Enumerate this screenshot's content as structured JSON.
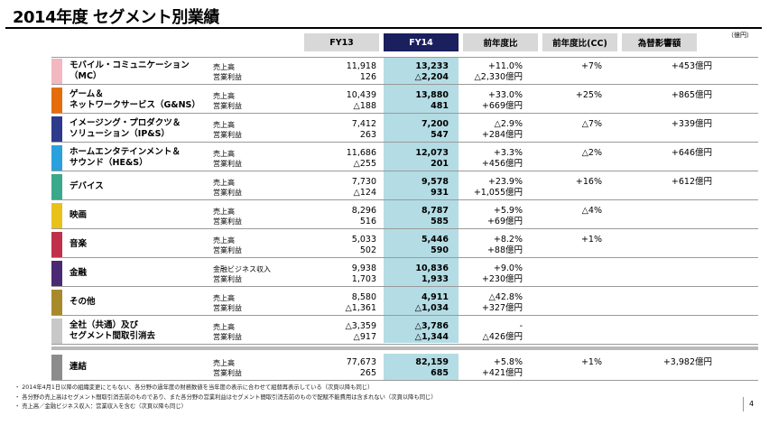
{
  "title": "2014年度 セグメント別業績",
  "unit": "（億円）",
  "headers": {
    "fy13": "FY13",
    "fy14": "FY14",
    "yoy": "前年度比",
    "yoy_cc": "前年度比(CC)",
    "fx": "為替影響額"
  },
  "colors": {
    "header_gray": "#d8d8d8",
    "header_navy": "#1a1f5e",
    "fy14_highlight": "#b4dce4"
  },
  "rows": [
    {
      "name1": "モバイル・コミュニケーション",
      "name2": "（MC）",
      "color": "#f2b8c0",
      "label1": "売上高",
      "label2": "営業利益",
      "fy13_1": "11,918",
      "fy13_2": "126",
      "fy14_1": "13,233",
      "fy14_2": "△2,204",
      "yoy_1": "+11.0%",
      "yoy_2": "△2,330億円",
      "cc": "+7%",
      "fx": "+453億円"
    },
    {
      "name1": "ゲーム＆",
      "name2": "ネットワークサービス（G&NS）",
      "color": "#e46c0a",
      "label1": "売上高",
      "label2": "営業利益",
      "fy13_1": "10,439",
      "fy13_2": "△188",
      "fy14_1": "13,880",
      "fy14_2": "481",
      "yoy_1": "+33.0%",
      "yoy_2": "+669億円",
      "cc": "+25%",
      "fx": "+865億円"
    },
    {
      "name1": "イメージング・プロダクツ＆",
      "name2": "ソリューション（IP&S）",
      "color": "#2e3a8c",
      "label1": "売上高",
      "label2": "営業利益",
      "fy13_1": "7,412",
      "fy13_2": "263",
      "fy14_1": "7,200",
      "fy14_2": "547",
      "yoy_1": "△2.9%",
      "yoy_2": "+284億円",
      "cc": "△7%",
      "fx": "+339億円"
    },
    {
      "name1": "ホームエンタテインメント＆",
      "name2": "サウンド（HE&S）",
      "color": "#2aa0dc",
      "label1": "売上高",
      "label2": "営業利益",
      "fy13_1": "11,686",
      "fy13_2": "△255",
      "fy14_1": "12,073",
      "fy14_2": "201",
      "yoy_1": "+3.3%",
      "yoy_2": "+456億円",
      "cc": "△2%",
      "fx": "+646億円"
    },
    {
      "name1": "デバイス",
      "name2": "",
      "color": "#3aa88a",
      "label1": "売上高",
      "label2": "営業利益",
      "fy13_1": "7,730",
      "fy13_2": "△124",
      "fy14_1": "9,578",
      "fy14_2": "931",
      "yoy_1": "+23.9%",
      "yoy_2": "+1,055億円",
      "cc": "+16%",
      "fx": "+612億円"
    },
    {
      "name1": "映画",
      "name2": "",
      "color": "#e8c11a",
      "label1": "売上高",
      "label2": "営業利益",
      "fy13_1": "8,296",
      "fy13_2": "516",
      "fy14_1": "8,787",
      "fy14_2": "585",
      "yoy_1": "+5.9%",
      "yoy_2": "+69億円",
      "cc": "△4%",
      "fx": ""
    },
    {
      "name1": "音楽",
      "name2": "",
      "color": "#c0304a",
      "label1": "売上高",
      "label2": "営業利益",
      "fy13_1": "5,033",
      "fy13_2": "502",
      "fy14_1": "5,446",
      "fy14_2": "590",
      "yoy_1": "+8.2%",
      "yoy_2": "+88億円",
      "cc": "+1%",
      "fx": ""
    },
    {
      "name1": "金融",
      "name2": "",
      "color": "#4a2a72",
      "label1": "金融ビジネス収入",
      "label2": "営業利益",
      "fy13_1": "9,938",
      "fy13_2": "1,703",
      "fy14_1": "10,836",
      "fy14_2": "1,933",
      "yoy_1": "+9.0%",
      "yoy_2": "+230億円",
      "cc": "",
      "fx": ""
    },
    {
      "name1": "その他",
      "name2": "",
      "color": "#a88a2a",
      "label1": "売上高",
      "label2": "営業利益",
      "fy13_1": "8,580",
      "fy13_2": "△1,361",
      "fy14_1": "4,911",
      "fy14_2": "△1,034",
      "yoy_1": "△42.8%",
      "yoy_2": "+327億円",
      "cc": "",
      "fx": ""
    },
    {
      "name1": "全社（共通）及び",
      "name2": "セグメント間取引消去",
      "color": "#c8c8c8",
      "label1": "売上高",
      "label2": "営業利益",
      "fy13_1": "△3,359",
      "fy13_2": "△917",
      "fy14_1": "△3,786",
      "fy14_2": "△1,344",
      "yoy_1": "-",
      "yoy_2": "△426億円",
      "cc": "",
      "fx": ""
    }
  ],
  "total": {
    "name1": "連結",
    "color": "#8c8c8c",
    "label1": "売上高",
    "label2": "営業利益",
    "fy13_1": "77,673",
    "fy13_2": "265",
    "fy14_1": "82,159",
    "fy14_2": "685",
    "yoy_1": "+5.8%",
    "yoy_2": "+421億円",
    "cc": "+1%",
    "fx": "+3,982億円"
  },
  "footnotes": [
    "・ 2014年4月1日以降の組織変更にともない、各分野の過年度の財務数値を当年度の表示に合わせて組替再表示している（次頁以降も同じ）",
    "・ 各分野の売上高はセグメント間取引消去前のものであり、また各分野の営業利益はセグメント間取引消去前のもので配賦不能費用は含まれない（次頁以降も同じ）",
    "・ 売上高／金融ビジネス収入：営業収入を含む（次頁以降も同じ）"
  ],
  "page_number": "4"
}
